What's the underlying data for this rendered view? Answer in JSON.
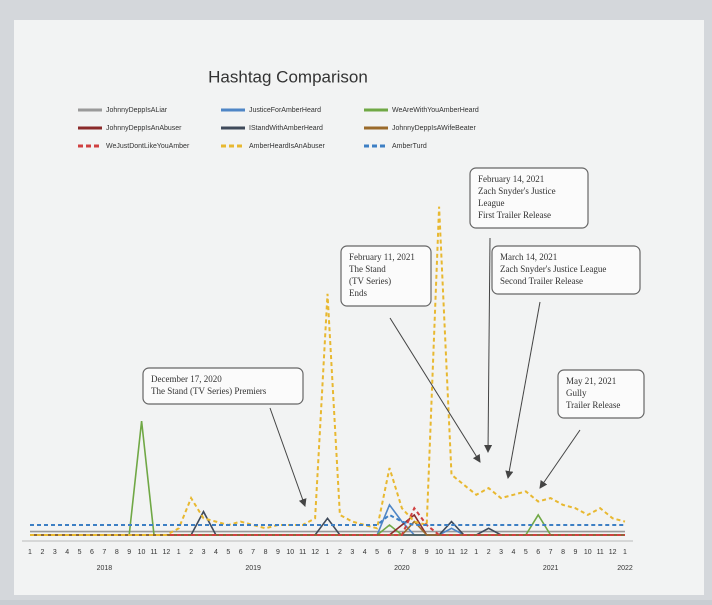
{
  "chart_data": {
    "type": "line",
    "title": "Hashtag Comparison",
    "categories": [
      "1",
      "2",
      "3",
      "4",
      "5",
      "6",
      "7",
      "8",
      "9",
      "10",
      "11",
      "12",
      "1",
      "2",
      "3",
      "4",
      "5",
      "6",
      "7",
      "8",
      "9",
      "10",
      "11",
      "12",
      "1",
      "2",
      "3",
      "4",
      "5",
      "6",
      "7",
      "8",
      "9",
      "10",
      "11",
      "12",
      "1",
      "2",
      "3",
      "4",
      "5",
      "6",
      "7",
      "8",
      "9",
      "10",
      "11",
      "12",
      "1"
    ],
    "years": [
      null,
      null,
      null,
      null,
      null,
      null,
      "2018",
      null,
      null,
      null,
      null,
      null,
      null,
      null,
      null,
      null,
      null,
      null,
      "2019",
      null,
      null,
      null,
      null,
      null,
      null,
      null,
      null,
      null,
      null,
      null,
      "2020",
      null,
      null,
      null,
      null,
      null,
      null,
      null,
      null,
      null,
      null,
      null,
      "2021",
      null,
      null,
      null,
      null,
      null,
      "2022"
    ],
    "ylim": [
      0,
      100
    ],
    "series": [
      {
        "name": "JohnnyDeppIsALiar",
        "color": "#9a9a9a",
        "style": "solid",
        "values": [
          1,
          1,
          1,
          1,
          1,
          1,
          1,
          1,
          1,
          1,
          1,
          1,
          1,
          1,
          1,
          1,
          1,
          1,
          1,
          1,
          1,
          1,
          1,
          1,
          1,
          1,
          1,
          1,
          1,
          1,
          1,
          1,
          1,
          1,
          1,
          1,
          1,
          1,
          1,
          1,
          1,
          1,
          1,
          1,
          1,
          1,
          1,
          1,
          1
        ]
      },
      {
        "name": "JusticeForAmberHeard",
        "color": "#4f86c6",
        "style": "solid",
        "values": [
          0,
          0,
          0,
          0,
          0,
          0,
          0,
          0,
          0,
          0,
          0,
          0,
          0,
          0,
          0,
          0,
          0,
          0,
          0,
          0,
          0,
          0,
          0,
          0,
          0,
          0,
          0,
          0,
          0,
          9,
          4,
          0,
          0,
          0,
          2,
          0,
          0,
          0,
          0,
          0,
          0,
          0,
          0,
          0,
          0,
          0,
          0,
          0,
          0
        ]
      },
      {
        "name": "WeAreWithYouAmberHeard",
        "color": "#70a845",
        "style": "solid",
        "values": [
          0,
          0,
          0,
          0,
          0,
          0,
          0,
          0,
          0,
          34,
          0,
          0,
          0,
          0,
          0,
          0,
          0,
          0,
          0,
          0,
          0,
          0,
          0,
          0,
          0,
          0,
          0,
          0,
          0,
          3,
          0,
          0,
          0,
          0,
          0,
          0,
          0,
          0,
          0,
          0,
          0,
          6,
          0,
          0,
          0,
          0,
          0,
          0,
          0
        ]
      },
      {
        "name": "JohnnyDeppIsAnAbuser",
        "color": "#8b2a2a",
        "style": "solid",
        "values": [
          0,
          0,
          0,
          0,
          0,
          0,
          0,
          0,
          0,
          0,
          0,
          0,
          0,
          0,
          0,
          0,
          0,
          0,
          0,
          0,
          0,
          0,
          0,
          0,
          0,
          0,
          0,
          0,
          0,
          0,
          3,
          6,
          0,
          0,
          0,
          0,
          0,
          0,
          0,
          0,
          0,
          0,
          0,
          0,
          0,
          0,
          0,
          0,
          0
        ]
      },
      {
        "name": "IStandWithAmberHeard",
        "color": "#3f4a5a",
        "style": "solid",
        "values": [
          0,
          0,
          0,
          0,
          0,
          0,
          0,
          0,
          0,
          0,
          0,
          0,
          0,
          0,
          7,
          0,
          0,
          0,
          0,
          0,
          0,
          0,
          0,
          0,
          5,
          0,
          0,
          0,
          0,
          0,
          0,
          0,
          0,
          0,
          4,
          0,
          0,
          2,
          0,
          0,
          0,
          0,
          0,
          0,
          0,
          0,
          0,
          0,
          0
        ]
      },
      {
        "name": "JohnnyDeppIsAWifeBeater",
        "color": "#9a6a2a",
        "style": "solid",
        "values": [
          0,
          0,
          0,
          0,
          0,
          0,
          0,
          0,
          0,
          0,
          0,
          0,
          0,
          0,
          0,
          0,
          0,
          0,
          0,
          0,
          0,
          0,
          0,
          0,
          0,
          0,
          0,
          0,
          0,
          0,
          0,
          4,
          0,
          0,
          0,
          0,
          0,
          0,
          0,
          0,
          0,
          0,
          0,
          0,
          0,
          0,
          0,
          0,
          0
        ]
      },
      {
        "name": "WeJustDontLikeYouAmber",
        "color": "#d04040",
        "style": "dashed",
        "values": [
          0,
          0,
          0,
          0,
          0,
          0,
          0,
          0,
          0,
          0,
          0,
          0,
          0,
          0,
          0,
          0,
          0,
          0,
          0,
          0,
          0,
          0,
          0,
          0,
          0,
          0,
          0,
          0,
          0,
          0,
          0,
          8,
          3,
          0,
          0,
          0,
          0,
          0,
          0,
          0,
          0,
          0,
          0,
          0,
          0,
          0,
          0,
          0,
          0
        ]
      },
      {
        "name": "AmberHeardIsAnAbuser",
        "color": "#e8b830",
        "style": "dashed",
        "values": [
          0,
          0,
          0,
          0,
          0,
          0,
          0,
          0,
          0,
          0,
          0,
          0,
          2,
          11,
          5,
          4,
          3,
          4,
          3,
          2,
          3,
          3,
          3,
          5,
          72,
          6,
          4,
          3,
          2,
          20,
          8,
          4,
          3,
          98,
          18,
          15,
          12,
          14,
          11,
          12,
          13,
          10,
          11,
          9,
          8,
          6,
          8,
          5,
          4
        ]
      },
      {
        "name": "AmberTurd",
        "color": "#3d7fc4",
        "style": "dashed",
        "values": [
          3,
          3,
          3,
          3,
          3,
          3,
          3,
          3,
          3,
          3,
          3,
          3,
          3,
          3,
          3,
          3,
          3,
          3,
          3,
          3,
          3,
          3,
          3,
          3,
          3,
          3,
          3,
          3,
          3,
          6,
          4,
          3,
          3,
          3,
          3,
          3,
          3,
          3,
          3,
          3,
          3,
          3,
          3,
          3,
          3,
          3,
          3,
          3,
          3
        ]
      }
    ],
    "annotations": [
      {
        "lines": [
          "December 17, 2020",
          "The Stand (TV Series) Premiers"
        ]
      },
      {
        "lines": [
          "February 11, 2021",
          "The Stand",
          "(TV Series)",
          "Ends"
        ]
      },
      {
        "lines": [
          "February 14, 2021",
          "Zach Snyder's Justice",
          "League",
          "First Trailer Release"
        ]
      },
      {
        "lines": [
          "March 14, 2021",
          "Zach Snyder's Justice League",
          "Second Trailer Release"
        ]
      },
      {
        "lines": [
          "May 21, 2021",
          "Gully",
          "Trailer Release"
        ]
      }
    ]
  }
}
